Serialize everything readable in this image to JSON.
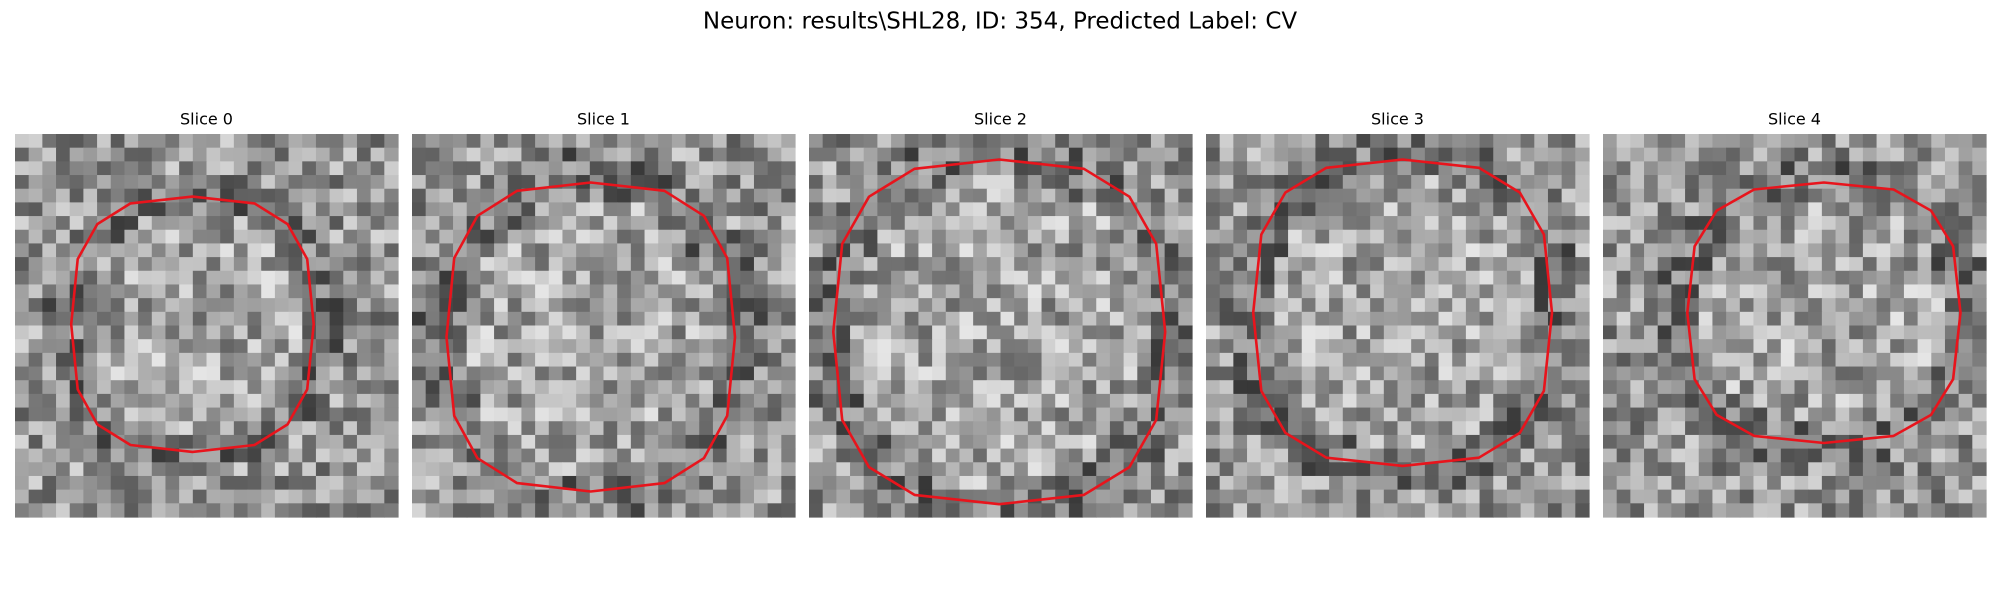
{
  "title": "Neuron: results\\SHL28, ID: 354, Predicted Label: CV",
  "panels": [
    {
      "title": "Slice 0"
    },
    {
      "title": "Slice 1"
    },
    {
      "title": "Slice 2"
    },
    {
      "title": "Slice 3"
    },
    {
      "title": "Slice 4"
    }
  ]
}
